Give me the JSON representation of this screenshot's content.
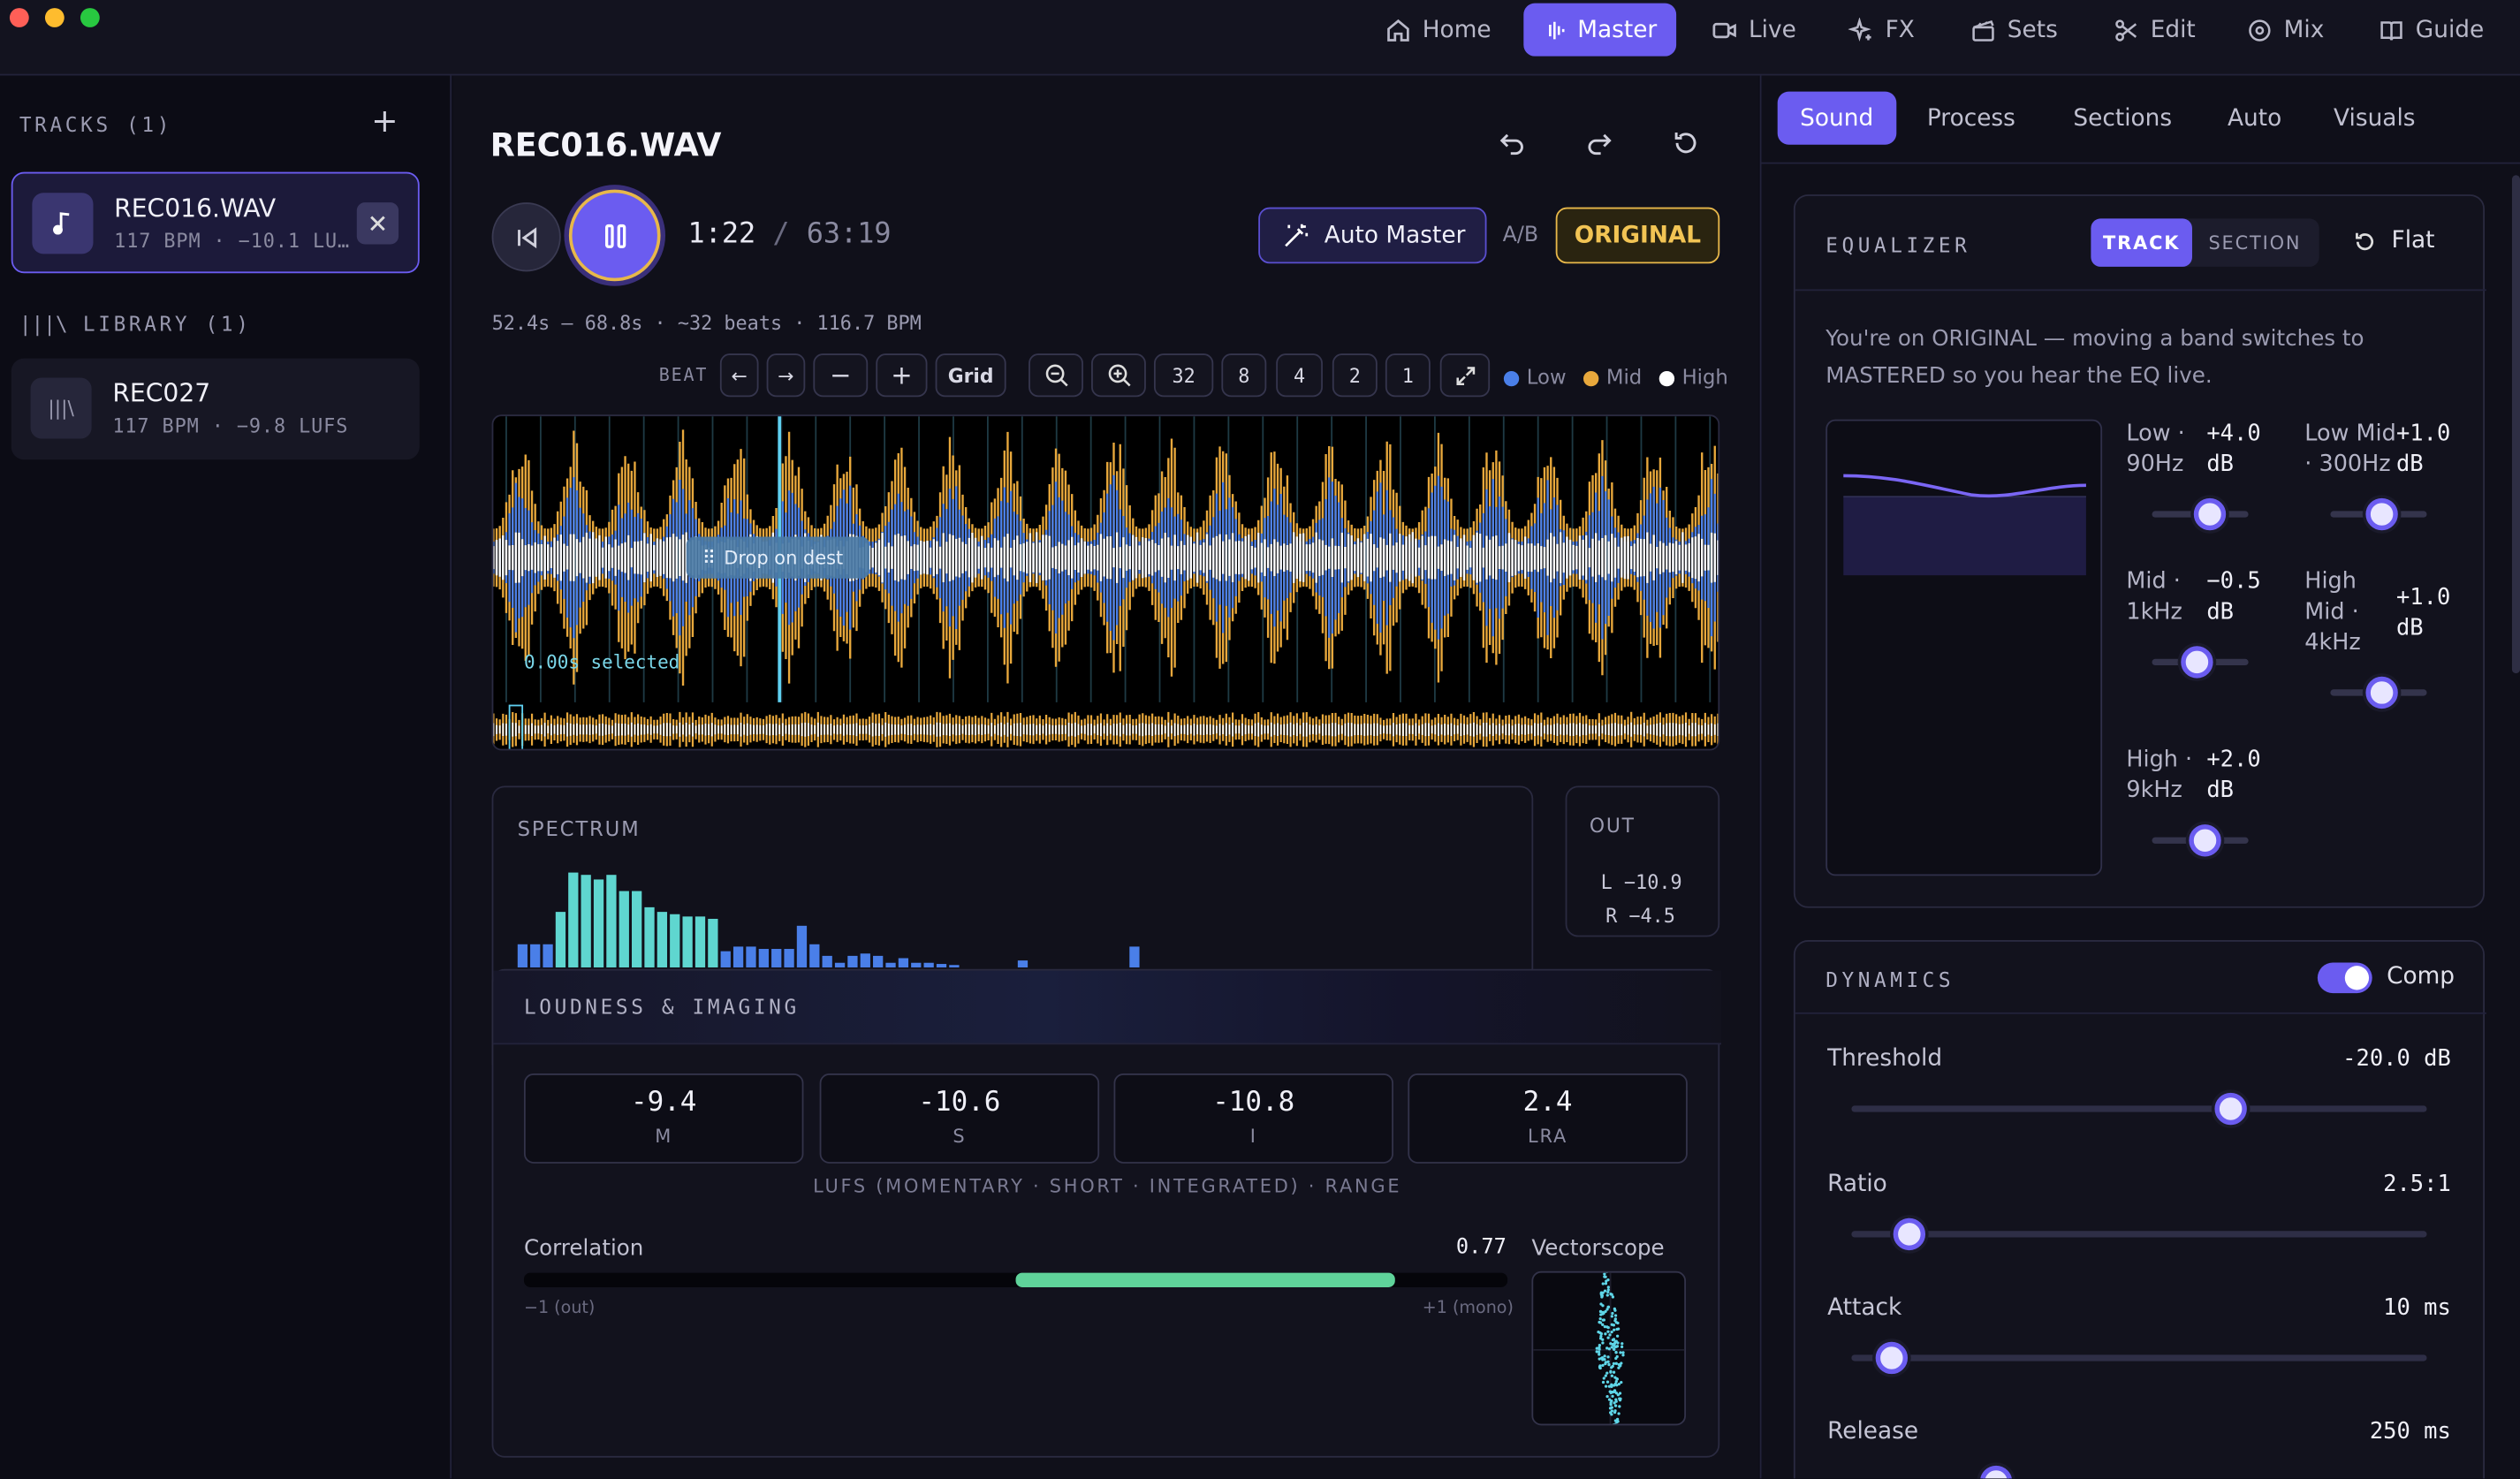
{
  "nav": [
    {
      "label": "Home",
      "icon": "home-icon"
    },
    {
      "label": "Master",
      "icon": "waveform-icon",
      "active": true
    },
    {
      "label": "Live",
      "icon": "video-icon"
    },
    {
      "label": "FX",
      "icon": "sparkle-icon"
    },
    {
      "label": "Sets",
      "icon": "clapper-icon"
    },
    {
      "label": "Edit",
      "icon": "scissors-icon"
    },
    {
      "label": "Mix",
      "icon": "disc-icon"
    },
    {
      "label": "Guide",
      "icon": "book-icon"
    }
  ],
  "sidebar": {
    "tracks_heading": "TRACKS (1)",
    "library_heading": "LIBRARY (1)",
    "tracks": [
      {
        "name": "REC016.WAV",
        "meta": "117 BPM · −10.1 LU…"
      }
    ],
    "library": [
      {
        "name": "REC027",
        "meta": "117 BPM · −9.8 LUFS"
      }
    ]
  },
  "player": {
    "title": "REC016.WAV",
    "time_current": "1:22",
    "time_sep": "/",
    "time_total": "63:19",
    "auto_master_label": "Auto Master",
    "ab_label": "A/B",
    "original_label": "ORIGINAL",
    "selection_info": "52.4s – 68.8s · ~32 beats · 116.7 BPM",
    "beat_label": "BEAT",
    "grid_label": "Grid",
    "zoom_levels": [
      "32",
      "8",
      "4",
      "2",
      "1"
    ],
    "legend": [
      {
        "label": "Low",
        "color": "#4a7fe8"
      },
      {
        "label": "Mid",
        "color": "#e8a83c"
      },
      {
        "label": "High",
        "color": "#ffffff"
      }
    ],
    "drop_hint": "Drop on dest",
    "selected_text": "0.00s selected"
  },
  "spectrum": {
    "title": "SPECTRUM",
    "bars": [
      0.2,
      0.2,
      0.2,
      0.48,
      0.82,
      0.8,
      0.76,
      0.8,
      0.66,
      0.66,
      0.52,
      0.48,
      0.46,
      0.44,
      0.44,
      0.42,
      0.14,
      0.18,
      0.18,
      0.16,
      0.16,
      0.16,
      0.36,
      0.2,
      0.1,
      0.04,
      0.1,
      0.12,
      0.1,
      0.04,
      0.08,
      0.04,
      0.04,
      0.03,
      0.02,
      0,
      0.0,
      0.06,
      0,
      0,
      0,
      0.18
    ]
  },
  "out_meter": {
    "title": "OUT",
    "left": "L −10.9",
    "right": "R −4.5"
  },
  "loudness": {
    "title": "LOUDNESS & IMAGING",
    "values": [
      {
        "value": "-9.4",
        "label": "M"
      },
      {
        "value": "-10.6",
        "label": "S"
      },
      {
        "value": "-10.8",
        "label": "I"
      },
      {
        "value": "2.4",
        "label": "LRA"
      }
    ],
    "caption": "LUFS (MOMENTARY · SHORT · INTEGRATED) · RANGE",
    "correlation_label": "Correlation",
    "correlation_value": "0.77",
    "correlation": 0.77,
    "corr_min_label": "−1 (out)",
    "corr_max_label": "+1 (mono)",
    "vectorscope_label": "Vectorscope"
  },
  "right_tabs": [
    "Sound",
    "Process",
    "Sections",
    "Auto",
    "Visuals"
  ],
  "equalizer": {
    "title": "EQUALIZER",
    "mode_track": "TRACK",
    "mode_section": "SECTION",
    "flat_label": "Flat",
    "note": "You're on ORIGINAL — moving a band switches to MASTERED so you hear the EQ live.",
    "bands": [
      {
        "label_a": "Low ·",
        "label_b": "90Hz",
        "value_a": "+4.0",
        "value_b": "dB",
        "level": 0.6
      },
      {
        "label_a": "Low Mid",
        "label_b": "· 300Hz",
        "value_a": "+1.0",
        "value_b": "dB",
        "level": 0.53
      },
      {
        "label_a": "Mid ·",
        "label_b": "1kHz",
        "value_a": "−0.5",
        "value_b": "dB",
        "level": 0.47
      },
      {
        "label_a": "High",
        "label_b": "Mid ·",
        "label_c": "4kHz",
        "value_a": "+1.0",
        "value_b": "dB",
        "level": 0.53
      },
      {
        "label_a": "High ·",
        "label_b": "9kHz",
        "value_a": "+2.0",
        "value_b": "dB",
        "level": 0.55
      }
    ]
  },
  "dynamics": {
    "title": "DYNAMICS",
    "comp_label": "Comp",
    "params": [
      {
        "label": "Threshold",
        "value": "-20.0 dB",
        "level": 0.66
      },
      {
        "label": "Ratio",
        "value": "2.5:1",
        "level": 0.1
      },
      {
        "label": "Attack",
        "value": "10 ms",
        "level": 0.07
      },
      {
        "label": "Release",
        "value": "250 ms",
        "level": 0.25
      }
    ]
  },
  "colors": {
    "accent": "#6b5cf0",
    "original": "#e8b84a",
    "low": "#4a7fe8",
    "mid": "#e8a83c",
    "correlation": "#5fd39a",
    "spectrum": "#5fd6d0"
  }
}
